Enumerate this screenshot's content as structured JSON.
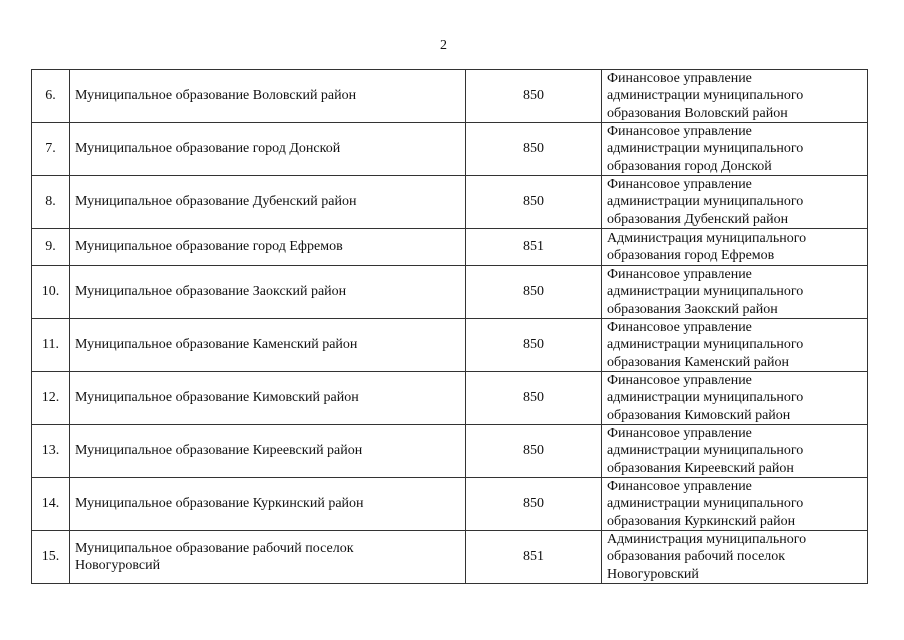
{
  "page_number": "2",
  "rows": [
    {
      "num": "6.",
      "name": "Муниципальное образование Воловский район",
      "code": "850",
      "org": [
        "Финансовое управление",
        "администрации муниципального",
        "образования Воловский район"
      ]
    },
    {
      "num": "7.",
      "name": "Муниципальное образование город Донской",
      "code": "850",
      "org": [
        "Финансовое управление",
        "администрации муниципального",
        "образования город Донской"
      ]
    },
    {
      "num": "8.",
      "name": "Муниципальное образование Дубенский район",
      "code": "850",
      "org": [
        "Финансовое управление",
        "администрации муниципального",
        "образования Дубенский район"
      ]
    },
    {
      "num": "9.",
      "name": "Муниципальное образование город Ефремов",
      "code": "851",
      "org": [
        "Администрация муниципального",
        "образования город Ефремов"
      ]
    },
    {
      "num": "10.",
      "name": "Муниципальное образование Заокский район",
      "code": "850",
      "org": [
        "Финансовое управление",
        "администрации муниципального",
        "образования Заокский район"
      ]
    },
    {
      "num": "11.",
      "name": "Муниципальное образование Каменский район",
      "code": "850",
      "org": [
        "Финансовое управление",
        "администрации муниципального",
        "образования Каменский район"
      ]
    },
    {
      "num": "12.",
      "name": "Муниципальное образование Кимовский район",
      "code": "850",
      "org": [
        "Финансовое управление",
        "администрации муниципального",
        "образования Кимовский район"
      ]
    },
    {
      "num": "13.",
      "name": "Муниципальное образование Киреевский район",
      "code": "850",
      "org": [
        "Финансовое управление",
        "администрации муниципального",
        "образования Киреевский район"
      ]
    },
    {
      "num": "14.",
      "name": "Муниципальное образование Куркинский район",
      "code": "850",
      "org": [
        "Финансовое управление",
        "администрации муниципального",
        "образования Куркинский район"
      ]
    },
    {
      "num": "15.",
      "name": "Муниципальное образование рабочий поселок Новогуровсий",
      "code": "851",
      "org": [
        "Администрация муниципального",
        "образования рабочий поселок",
        "Новогуровский"
      ]
    }
  ]
}
